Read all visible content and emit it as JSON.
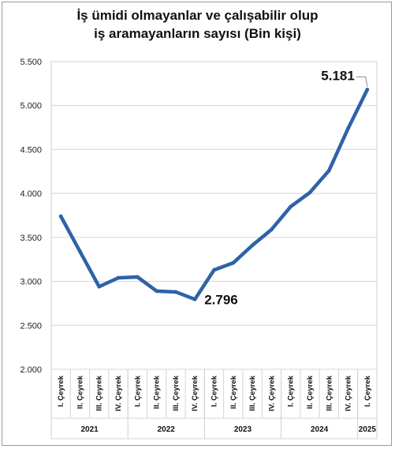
{
  "chart_data": {
    "type": "line",
    "title": "İş ümidi olmayanlar ve çalışabilir olup",
    "subtitle": "iş aramayanların sayısı (Bin kişi)",
    "ylim": [
      2000,
      5500
    ],
    "yticks": [
      "2.000",
      "2.500",
      "3.000",
      "3.500",
      "4.000",
      "4.500",
      "5.000",
      "5.500"
    ],
    "grid": true,
    "color": "#2e62a8",
    "categories": [
      "I. Çeyrek",
      "II. Çeyrek",
      "III. Çeyrek",
      "IV. Çeyrek",
      "I. Çeyrek",
      "II. Çeyrek",
      "III. Çeyrek",
      "IV. Çeyrek",
      "I. Çeyrek",
      "II. Çeyrek",
      "III. Çeyrek",
      "IV. Çeyrek",
      "I. Çeyrek",
      "II. Çeyrek",
      "III. Çeyrek",
      "IV. Çeyrek",
      "I. Çeyrek"
    ],
    "groups": [
      {
        "label": "2021",
        "count": 4
      },
      {
        "label": "2022",
        "count": 4
      },
      {
        "label": "2023",
        "count": 4
      },
      {
        "label": "2024",
        "count": 4
      },
      {
        "label": "2025",
        "count": 1
      }
    ],
    "values": [
      3740,
      3340,
      2940,
      3040,
      3050,
      2890,
      2880,
      2796,
      3130,
      3210,
      3410,
      3590,
      3850,
      4010,
      4260,
      4740,
      5181
    ],
    "data_labels": [
      {
        "index": 7,
        "text": "2.796"
      },
      {
        "index": 16,
        "text": "5.181"
      }
    ]
  }
}
